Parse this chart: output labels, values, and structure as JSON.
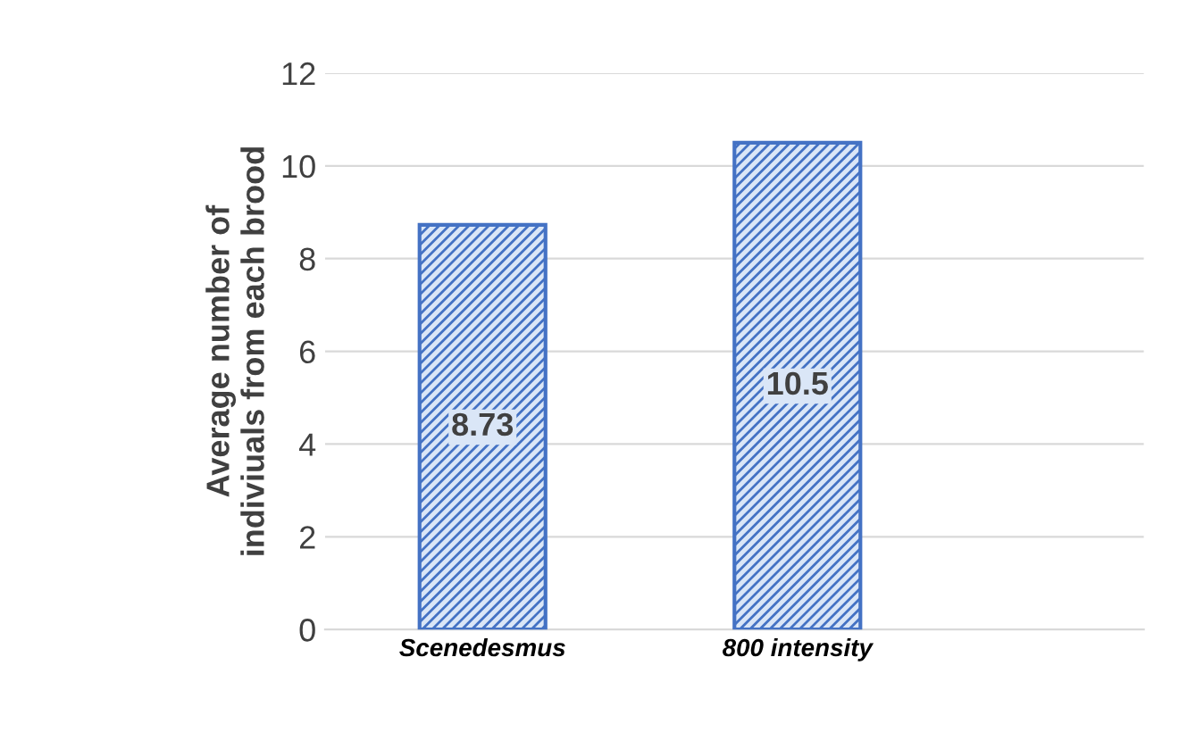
{
  "chart_data": {
    "type": "bar",
    "ylabel": "Average number of\nindiviuals from each brood",
    "categories": [
      "Scenedesmus",
      "800 intensity"
    ],
    "values": [
      8.73,
      10.5
    ],
    "color": "#4472c4",
    "ylim": [
      0,
      12
    ],
    "yticks": [
      0,
      2,
      4,
      6,
      8,
      10,
      12
    ],
    "grid": "y",
    "data_labels": true
  }
}
